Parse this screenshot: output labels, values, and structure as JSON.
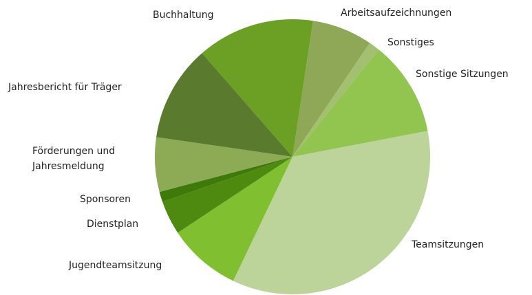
{
  "chart_data": {
    "type": "pie",
    "categories": [
      "Arbeitsaufzeichnungen",
      "Sonstiges",
      "Sonstige Sitzungen",
      "Teamsitzungen",
      "Jugendteamsitzung",
      "Dienstplan",
      "Sponsoren",
      "Förderungen und Jahresmeldung",
      "Jahresbericht für Träger",
      "Buchhaltung"
    ],
    "values": [
      7.1,
      1.3,
      11.2,
      35.1,
      8.6,
      4.0,
      1.2,
      6.4,
      11.3,
      13.8
    ],
    "colors": [
      "#8fa858",
      "#a3c070",
      "#92c450",
      "#bcd39a",
      "#80c030",
      "#4e8a10",
      "#3d7a0a",
      "#8daa55",
      "#5a7a2e",
      "#6ba024"
    ]
  }
}
